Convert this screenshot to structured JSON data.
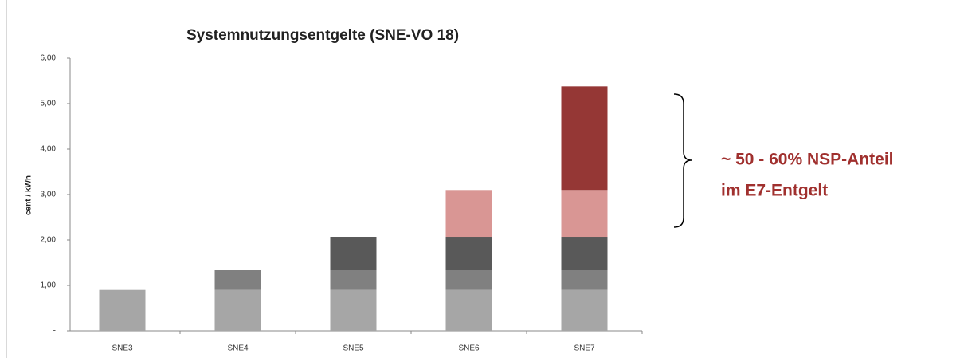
{
  "chart_data": {
    "type": "stacked_bar",
    "title": "Systemnutzungsentgelte (SNE-VO 18)",
    "y_label": "cent / kWh",
    "categories": [
      "SNE3",
      "SNE4",
      "SNE5",
      "SNE6",
      "SNE7"
    ],
    "series": [
      {
        "color": "#a6a6a6",
        "values": [
          0.9,
          0.9,
          0.9,
          0.9,
          0.9
        ]
      },
      {
        "color": "#808080",
        "values": [
          null,
          0.45,
          0.45,
          0.45,
          0.45
        ]
      },
      {
        "color": "#595959",
        "values": [
          null,
          null,
          0.72,
          0.72,
          0.72
        ]
      },
      {
        "color": "#d99694",
        "values": [
          null,
          null,
          null,
          1.03,
          1.03
        ]
      },
      {
        "color": "#953735",
        "values": [
          null,
          null,
          null,
          null,
          2.28
        ]
      }
    ],
    "ylim": [
      0,
      6
    ],
    "yticks": [
      {
        "value": 0,
        "label": "-"
      },
      {
        "value": 1,
        "label": "1,00"
      },
      {
        "value": 2,
        "label": "2,00"
      },
      {
        "value": 3,
        "label": "3,00"
      },
      {
        "value": 4,
        "label": "4,00"
      },
      {
        "value": 5,
        "label": "5,00"
      },
      {
        "value": 6,
        "label": "6,00"
      }
    ],
    "annotations": [
      "~ 50 - 60% NSP-Anteil",
      "im E7-Entgelt"
    ],
    "annotation_color": "#a0302e"
  }
}
